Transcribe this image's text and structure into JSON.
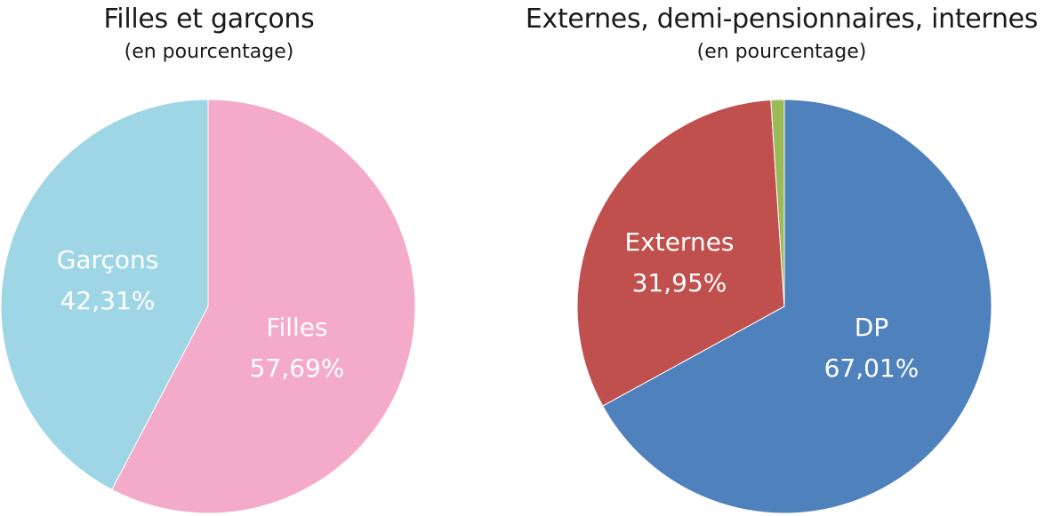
{
  "chart_data": [
    {
      "type": "pie",
      "title": "Filles et garçons",
      "subtitle": "(en pourcentage)",
      "slices": [
        {
          "label": "Filles",
          "value": 57.69,
          "display": "57,69%",
          "color": "#f4aac9"
        },
        {
          "label": "Garçons",
          "value": 42.31,
          "display": "42,31%",
          "color": "#9fd6e6"
        }
      ]
    },
    {
      "type": "pie",
      "title": "Externes, demi-pensionnaires, internes",
      "subtitle": "(en pourcentage)",
      "slices": [
        {
          "label": "DP",
          "value": 67.01,
          "display": "67,01%",
          "color": "#4f81bd"
        },
        {
          "label": "Externes",
          "value": 31.95,
          "display": "31,95%",
          "color": "#c0504d"
        },
        {
          "label": "",
          "value": 1.04,
          "display": "",
          "color": "#9bbb59"
        }
      ]
    }
  ]
}
